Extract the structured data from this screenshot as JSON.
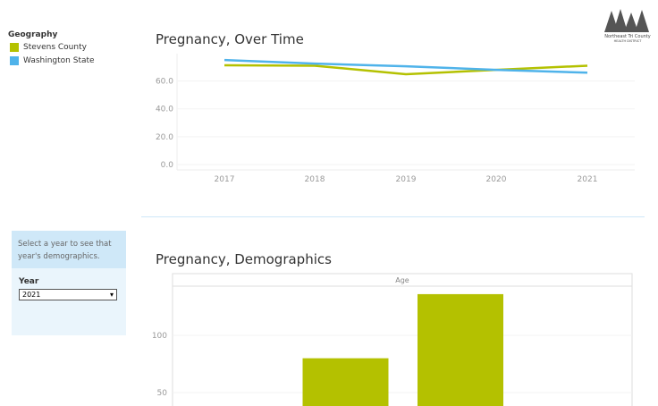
{
  "legend": {
    "title": "Geography",
    "items": [
      {
        "label": "Stevens County",
        "color": "#b4c100"
      },
      {
        "label": "Washington State",
        "color": "#4fb3ea"
      }
    ]
  },
  "logo": {
    "text": "Northeast Tri County Health District"
  },
  "filter": {
    "instruction": "Select a  year to see that year's demographics.",
    "label": "Year",
    "value": "2021"
  },
  "chart_data": [
    {
      "type": "line",
      "title": "Pregnancy, Over Time",
      "x": [
        "2017",
        "2018",
        "2019",
        "2020",
        "2021"
      ],
      "yticks": [
        "0.0",
        "20.0",
        "40.0",
        "60.0"
      ],
      "ylim": [
        0,
        80
      ],
      "series": [
        {
          "name": "Stevens County",
          "color": "#b4c100",
          "values": [
            71.3,
            71,
            64.9,
            68,
            71
          ]
        },
        {
          "name": "Washington State",
          "color": "#4fb3ea",
          "values": [
            75.1,
            72.5,
            70.6,
            68,
            66
          ]
        }
      ]
    },
    {
      "type": "bar",
      "title": "Pregnancy, Demographics",
      "header": "Age",
      "yticks": [
        "50",
        "100"
      ],
      "values": [
        null,
        80,
        136,
        null
      ],
      "color": "#b4c100"
    }
  ]
}
